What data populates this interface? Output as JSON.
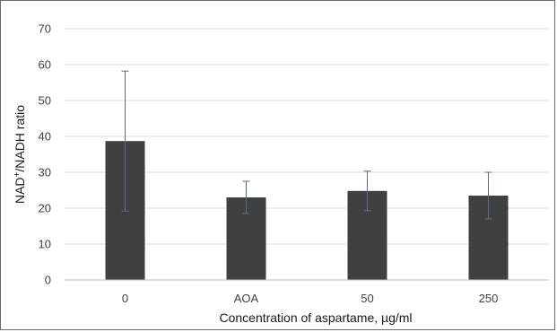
{
  "chart_data": {
    "type": "bar",
    "title": "",
    "xlabel": "Concentration of aspartame, µg/ml",
    "ylabel": "NAD+/NADH ratio",
    "ylabel_parts": {
      "pre": "NAD",
      "sup": "+",
      "post": "/NADH ratio"
    },
    "categories": [
      "0",
      "AOA",
      "50",
      "250"
    ],
    "values": [
      38.7,
      23.0,
      24.8,
      23.5
    ],
    "error": [
      19.5,
      4.5,
      5.5,
      6.5
    ],
    "ylim": [
      0,
      70
    ],
    "yticks": [
      0,
      10,
      20,
      30,
      40,
      50,
      60,
      70
    ],
    "grid": true,
    "legend": "none",
    "bar_color": "#404040",
    "error_bar_color": "#5a6b82",
    "grid_color": "#dcdcdc"
  }
}
